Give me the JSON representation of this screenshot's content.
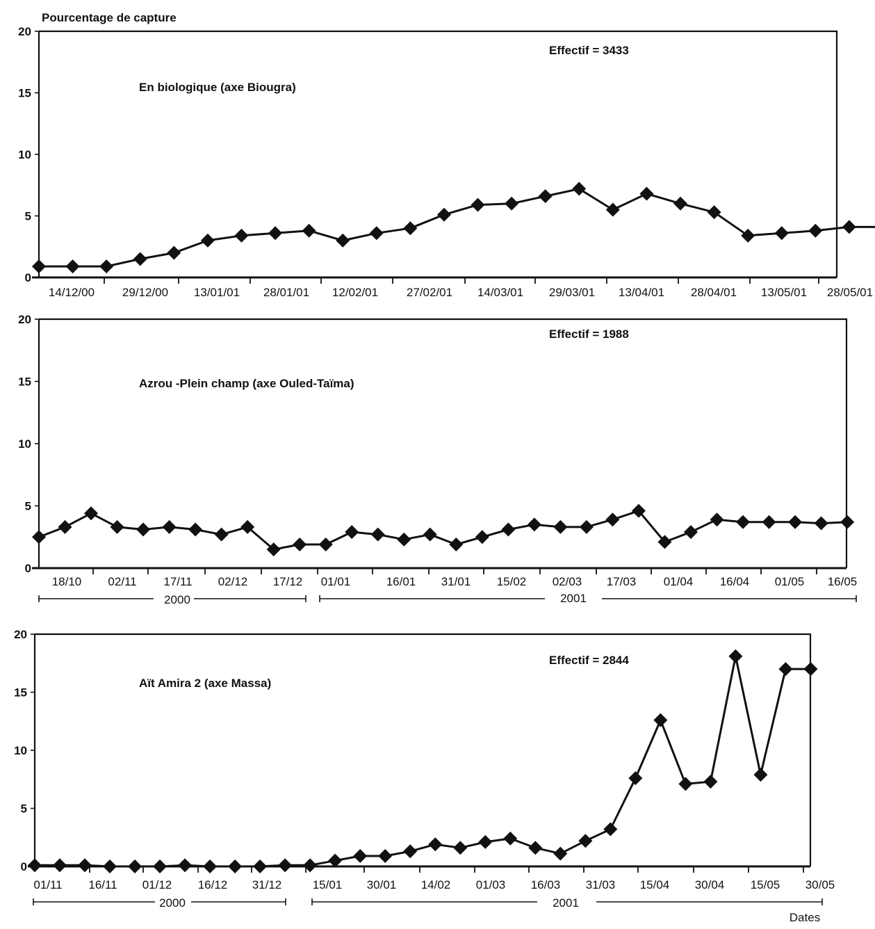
{
  "chart_data": [
    {
      "type": "line",
      "ylabel": "Pourcentage de  capture",
      "xlabel": "",
      "ylim": [
        0,
        20
      ],
      "yticks": [
        0,
        5,
        10,
        15,
        20
      ],
      "tick_labels": [
        "14/12/00",
        "29/12/00",
        "13/01/01",
        "28/01/01",
        "12/02/01",
        "27/02/01",
        "14/03/01",
        "29/03/01",
        "13/04/01",
        "28/04/01",
        "13/05/01",
        "28/05/01"
      ],
      "annotations": {
        "effectif": "Effectif = 3433",
        "site": "En biologique (axe Biougra)"
      },
      "series": [
        {
          "x": [
            "07/12/00",
            "14/12/00",
            "21/12/00",
            "28/12/00",
            "04/01/01",
            "11/01/01",
            "18/01/01",
            "25/01/01",
            "01/02/01",
            "08/02/01",
            "15/02/01",
            "22/02/01",
            "01/03/01",
            "08/03/01",
            "15/03/01",
            "22/03/01",
            "29/03/01",
            "05/04/01",
            "12/04/01",
            "19/04/01",
            "26/04/01",
            "03/05/01",
            "10/05/01",
            "17/05/01",
            "24/05/01",
            "31/05/01"
          ],
          "values": [
            0.9,
            0.9,
            0.9,
            1.5,
            2.0,
            3.0,
            3.4,
            3.6,
            3.8,
            3.0,
            3.6,
            4.0,
            5.1,
            5.9,
            6.0,
            6.6,
            7.2,
            5.5,
            6.8,
            6.0,
            5.3,
            3.4,
            3.6,
            3.8,
            4.1,
            4.1
          ]
        }
      ]
    },
    {
      "type": "line",
      "ylabel": "",
      "xlabel": "",
      "ylim": [
        0,
        20
      ],
      "yticks": [
        0,
        5,
        10,
        15,
        20
      ],
      "tick_labels": [
        "18/10",
        "02/11",
        "17/11",
        "02/12",
        "17/12",
        "01/01",
        "16/01",
        "31/01",
        "15/02",
        "02/03",
        "17/03",
        "01/04",
        "16/04",
        "01/05",
        "16/05"
      ],
      "year_labels": [
        "2000",
        "2001"
      ],
      "annotations": {
        "effectif": "Effectif = 1988",
        "site": "Azrou -Plein champ (axe Ouled-Taïma)"
      },
      "series": [
        {
          "x": [
            "12/10/00",
            "19/10/00",
            "26/10/00",
            "02/11/00",
            "09/11/00",
            "16/11/00",
            "23/11/00",
            "30/11/00",
            "07/12/00",
            "14/12/00",
            "21/12/00",
            "28/12/00",
            "04/01/01",
            "11/01/01",
            "18/01/01",
            "25/01/01",
            "01/02/01",
            "08/02/01",
            "15/02/01",
            "22/02/01",
            "01/03/01",
            "08/03/01",
            "15/03/01",
            "22/03/01",
            "29/03/01",
            "05/04/01",
            "12/04/01",
            "19/04/01",
            "26/04/01",
            "03/05/01",
            "10/05/01",
            "17/05/01"
          ],
          "values": [
            2.5,
            3.3,
            4.4,
            3.3,
            3.1,
            3.3,
            3.1,
            2.7,
            3.3,
            1.5,
            1.9,
            1.9,
            2.9,
            2.7,
            2.3,
            2.7,
            1.9,
            2.5,
            3.1,
            3.5,
            3.3,
            3.3,
            3.9,
            4.6,
            2.1,
            2.9,
            3.9,
            3.7,
            3.7,
            3.7,
            3.6,
            3.7
          ]
        }
      ]
    },
    {
      "type": "line",
      "ylabel": "",
      "xlabel": "Dates",
      "ylim": [
        0,
        20
      ],
      "yticks": [
        0,
        5,
        10,
        15,
        20
      ],
      "tick_labels": [
        "01/11",
        "16/11",
        "01/12",
        "16/12",
        "31/12",
        "15/01",
        "30/01",
        "14/02",
        "01/03",
        "16/03",
        "31/03",
        "15/04",
        "30/04",
        "15/05",
        "30/05"
      ],
      "year_labels": [
        "2000",
        "2001"
      ],
      "annotations": {
        "effectif": "Effectif = 2844",
        "site": "Aït Amira 2 (axe Massa)"
      },
      "series": [
        {
          "x": [
            "01/11/00",
            "08/11/00",
            "15/11/00",
            "22/11/00",
            "29/11/00",
            "06/12/00",
            "13/12/00",
            "20/12/00",
            "27/12/00",
            "03/01/01",
            "10/01/01",
            "17/01/01",
            "24/01/01",
            "31/01/01",
            "07/02/01",
            "14/02/01",
            "21/02/01",
            "28/02/01",
            "07/03/01",
            "14/03/01",
            "21/03/01",
            "28/03/01",
            "04/04/01",
            "11/04/01",
            "18/04/01",
            "25/04/01",
            "02/05/01",
            "09/05/01",
            "16/05/01",
            "23/05/01",
            "30/05/01",
            "06/06/01"
          ],
          "values": [
            0.1,
            0.1,
            0.1,
            0.0,
            0.0,
            0.0,
            0.1,
            0.0,
            0.0,
            0.0,
            0.1,
            0.1,
            0.5,
            0.9,
            0.9,
            1.3,
            1.9,
            1.6,
            2.1,
            2.4,
            1.6,
            1.1,
            2.2,
            3.2,
            7.6,
            12.6,
            7.1,
            7.3,
            18.1,
            7.9,
            17.0,
            17.0
          ]
        }
      ]
    }
  ]
}
